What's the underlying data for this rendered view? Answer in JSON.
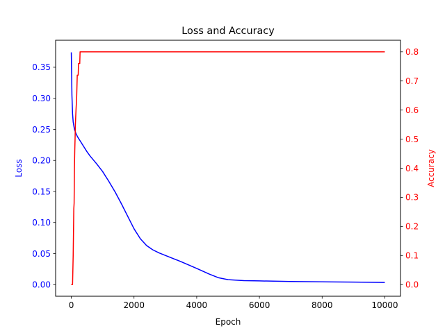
{
  "chart_data": {
    "type": "line",
    "title": "Loss and Accuracy",
    "xlabel": "Epoch",
    "ylabel_left": "Loss",
    "ylabel_right": "Accuracy",
    "xlim": [
      -500,
      10500
    ],
    "ylim_left": [
      -0.0187,
      0.3935
    ],
    "ylim_right": [
      -0.04,
      0.84
    ],
    "x_ticks": [
      0,
      2000,
      4000,
      6000,
      8000,
      10000
    ],
    "y_ticks_left": [
      0.0,
      0.05,
      0.1,
      0.15,
      0.2,
      0.25,
      0.3,
      0.35
    ],
    "y_ticks_right": [
      0.0,
      0.1,
      0.2,
      0.3,
      0.4,
      0.5,
      0.6,
      0.7,
      0.8
    ],
    "grid": false,
    "series": [
      {
        "axis": "left",
        "color": "#0000ff",
        "x": [
          0,
          10,
          20,
          40,
          60,
          100,
          150,
          200,
          300,
          400,
          500,
          600,
          800,
          1000,
          1200,
          1400,
          1600,
          1800,
          2000,
          2200,
          2400,
          2600,
          2800,
          3000,
          3500,
          4000,
          4400,
          4700,
          5000,
          5500,
          6000,
          7000,
          8000,
          9000,
          10000
        ],
        "values": [
          0.374,
          0.34,
          0.305,
          0.275,
          0.262,
          0.25,
          0.243,
          0.238,
          0.23,
          0.222,
          0.214,
          0.207,
          0.195,
          0.182,
          0.166,
          0.149,
          0.13,
          0.11,
          0.09,
          0.074,
          0.063,
          0.056,
          0.051,
          0.047,
          0.037,
          0.026,
          0.017,
          0.011,
          0.008,
          0.0065,
          0.006,
          0.005,
          0.0045,
          0.004,
          0.0035
        ]
      },
      {
        "axis": "right",
        "color": "#ff0000",
        "x": [
          0,
          40,
          60,
          80,
          90,
          100,
          110,
          120,
          130,
          150,
          170,
          180,
          190,
          200,
          210,
          220,
          230,
          250,
          260,
          270,
          280,
          290,
          300,
          400,
          1000,
          5000,
          10000
        ],
        "values": [
          0.0,
          0.0,
          0.1,
          0.26,
          0.28,
          0.4,
          0.46,
          0.5,
          0.55,
          0.6,
          0.64,
          0.68,
          0.72,
          0.72,
          0.72,
          0.72,
          0.76,
          0.76,
          0.76,
          0.76,
          0.8,
          0.8,
          0.8,
          0.8,
          0.8,
          0.8,
          0.8
        ]
      }
    ]
  },
  "colors": {
    "loss": "#0000ff",
    "accuracy": "#ff0000",
    "axis": "#000000"
  }
}
